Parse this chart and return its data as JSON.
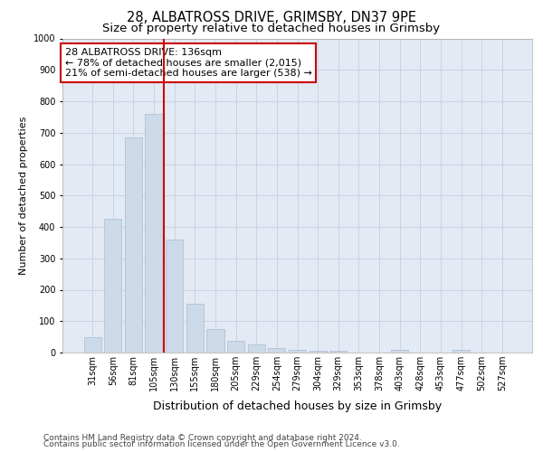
{
  "title_line1": "28, ALBATROSS DRIVE, GRIMSBY, DN37 9PE",
  "title_line2": "Size of property relative to detached houses in Grimsby",
  "xlabel": "Distribution of detached houses by size in Grimsby",
  "ylabel": "Number of detached properties",
  "categories": [
    "31sqm",
    "56sqm",
    "81sqm",
    "105sqm",
    "130sqm",
    "155sqm",
    "180sqm",
    "205sqm",
    "229sqm",
    "254sqm",
    "279sqm",
    "304sqm",
    "329sqm",
    "353sqm",
    "378sqm",
    "403sqm",
    "428sqm",
    "453sqm",
    "477sqm",
    "502sqm",
    "527sqm"
  ],
  "values": [
    50,
    425,
    685,
    760,
    360,
    155,
    75,
    38,
    25,
    15,
    9,
    5,
    5,
    0,
    0,
    8,
    0,
    0,
    9,
    0,
    0
  ],
  "bar_color": "#ccd9e8",
  "bar_edge_color": "#aabcce",
  "vline_color": "#cc0000",
  "vline_x": 3.5,
  "annotation_text": "28 ALBATROSS DRIVE: 136sqm\n← 78% of detached houses are smaller (2,015)\n21% of semi-detached houses are larger (538) →",
  "annotation_box_facecolor": "#ffffff",
  "annotation_box_edgecolor": "#cc0000",
  "ylim": [
    0,
    1000
  ],
  "yticks": [
    0,
    100,
    200,
    300,
    400,
    500,
    600,
    700,
    800,
    900,
    1000
  ],
  "grid_color": "#c8d4e4",
  "background_color": "#e4eaf4",
  "footer_line1": "Contains HM Land Registry data © Crown copyright and database right 2024.",
  "footer_line2": "Contains public sector information licensed under the Open Government Licence v3.0.",
  "title_fontsize": 10.5,
  "subtitle_fontsize": 9.5,
  "axis_xlabel_fontsize": 9,
  "axis_ylabel_fontsize": 8,
  "tick_fontsize": 7,
  "annotation_fontsize": 8,
  "footer_fontsize": 6.5
}
